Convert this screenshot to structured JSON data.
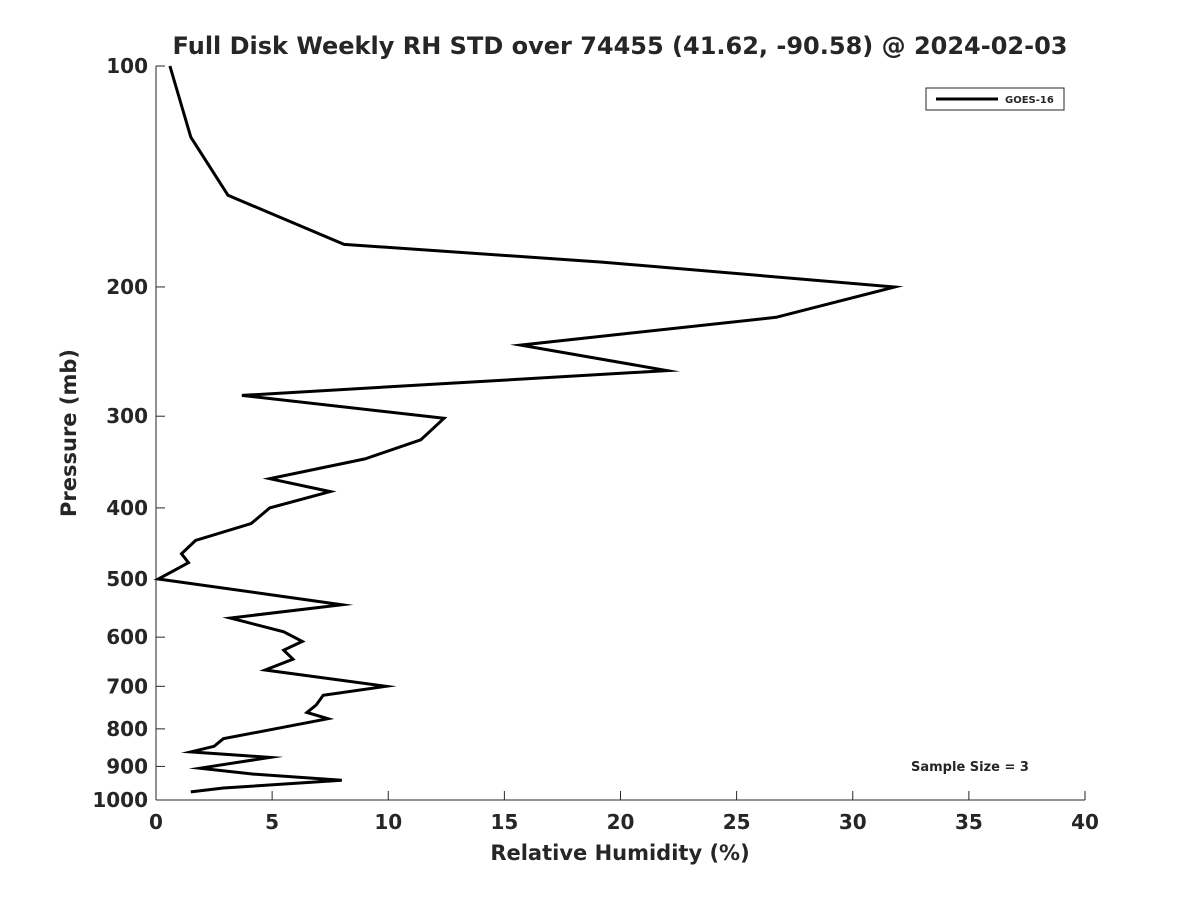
{
  "chart_data": {
    "type": "line",
    "title": "Full Disk Weekly RH STD over 74455 (41.62, -90.58) @ 2024-02-03",
    "xlabel": "Relative Humidity (%)",
    "ylabel": "Pressure (mb)",
    "xlim": [
      0,
      40
    ],
    "ylim": [
      100,
      1000
    ],
    "y_scale": "log",
    "y_reversed": true,
    "grid": false,
    "legend_position": "top-right",
    "x_ticks": [
      0,
      5,
      10,
      15,
      20,
      25,
      30,
      35,
      40
    ],
    "y_ticks": [
      100,
      200,
      300,
      400,
      500,
      600,
      700,
      800,
      900,
      1000
    ],
    "annotation": "Sample Size = 3",
    "series": [
      {
        "name": "GOES-16",
        "color": "#000000",
        "points": [
          [
            0.6,
            100
          ],
          [
            1.5,
            125
          ],
          [
            3.1,
            150
          ],
          [
            8.1,
            175
          ],
          [
            19.2,
            185
          ],
          [
            31.8,
            200
          ],
          [
            26.7,
            220
          ],
          [
            15.7,
            240
          ],
          [
            22.0,
            260
          ],
          [
            3.7,
            281
          ],
          [
            12.4,
            302
          ],
          [
            11.4,
            323
          ],
          [
            9.0,
            343
          ],
          [
            4.9,
            365
          ],
          [
            7.5,
            380
          ],
          [
            4.9,
            400
          ],
          [
            4.1,
            420
          ],
          [
            1.7,
            443
          ],
          [
            1.1,
            462
          ],
          [
            1.4,
            475
          ],
          [
            0.1,
            500
          ],
          [
            4.9,
            525
          ],
          [
            8.0,
            542
          ],
          [
            3.2,
            565
          ],
          [
            5.5,
            590
          ],
          [
            6.3,
            608
          ],
          [
            5.5,
            625
          ],
          [
            5.9,
            643
          ],
          [
            4.7,
            665
          ],
          [
            9.9,
            700
          ],
          [
            7.2,
            720
          ],
          [
            6.9,
            742
          ],
          [
            6.5,
            760
          ],
          [
            7.4,
            775
          ],
          [
            2.9,
            825
          ],
          [
            2.5,
            845
          ],
          [
            1.5,
            860
          ],
          [
            4.9,
            875
          ],
          [
            1.9,
            905
          ],
          [
            4.2,
            922
          ],
          [
            8.0,
            940
          ],
          [
            2.9,
            963
          ],
          [
            1.5,
            975
          ]
        ]
      }
    ]
  }
}
